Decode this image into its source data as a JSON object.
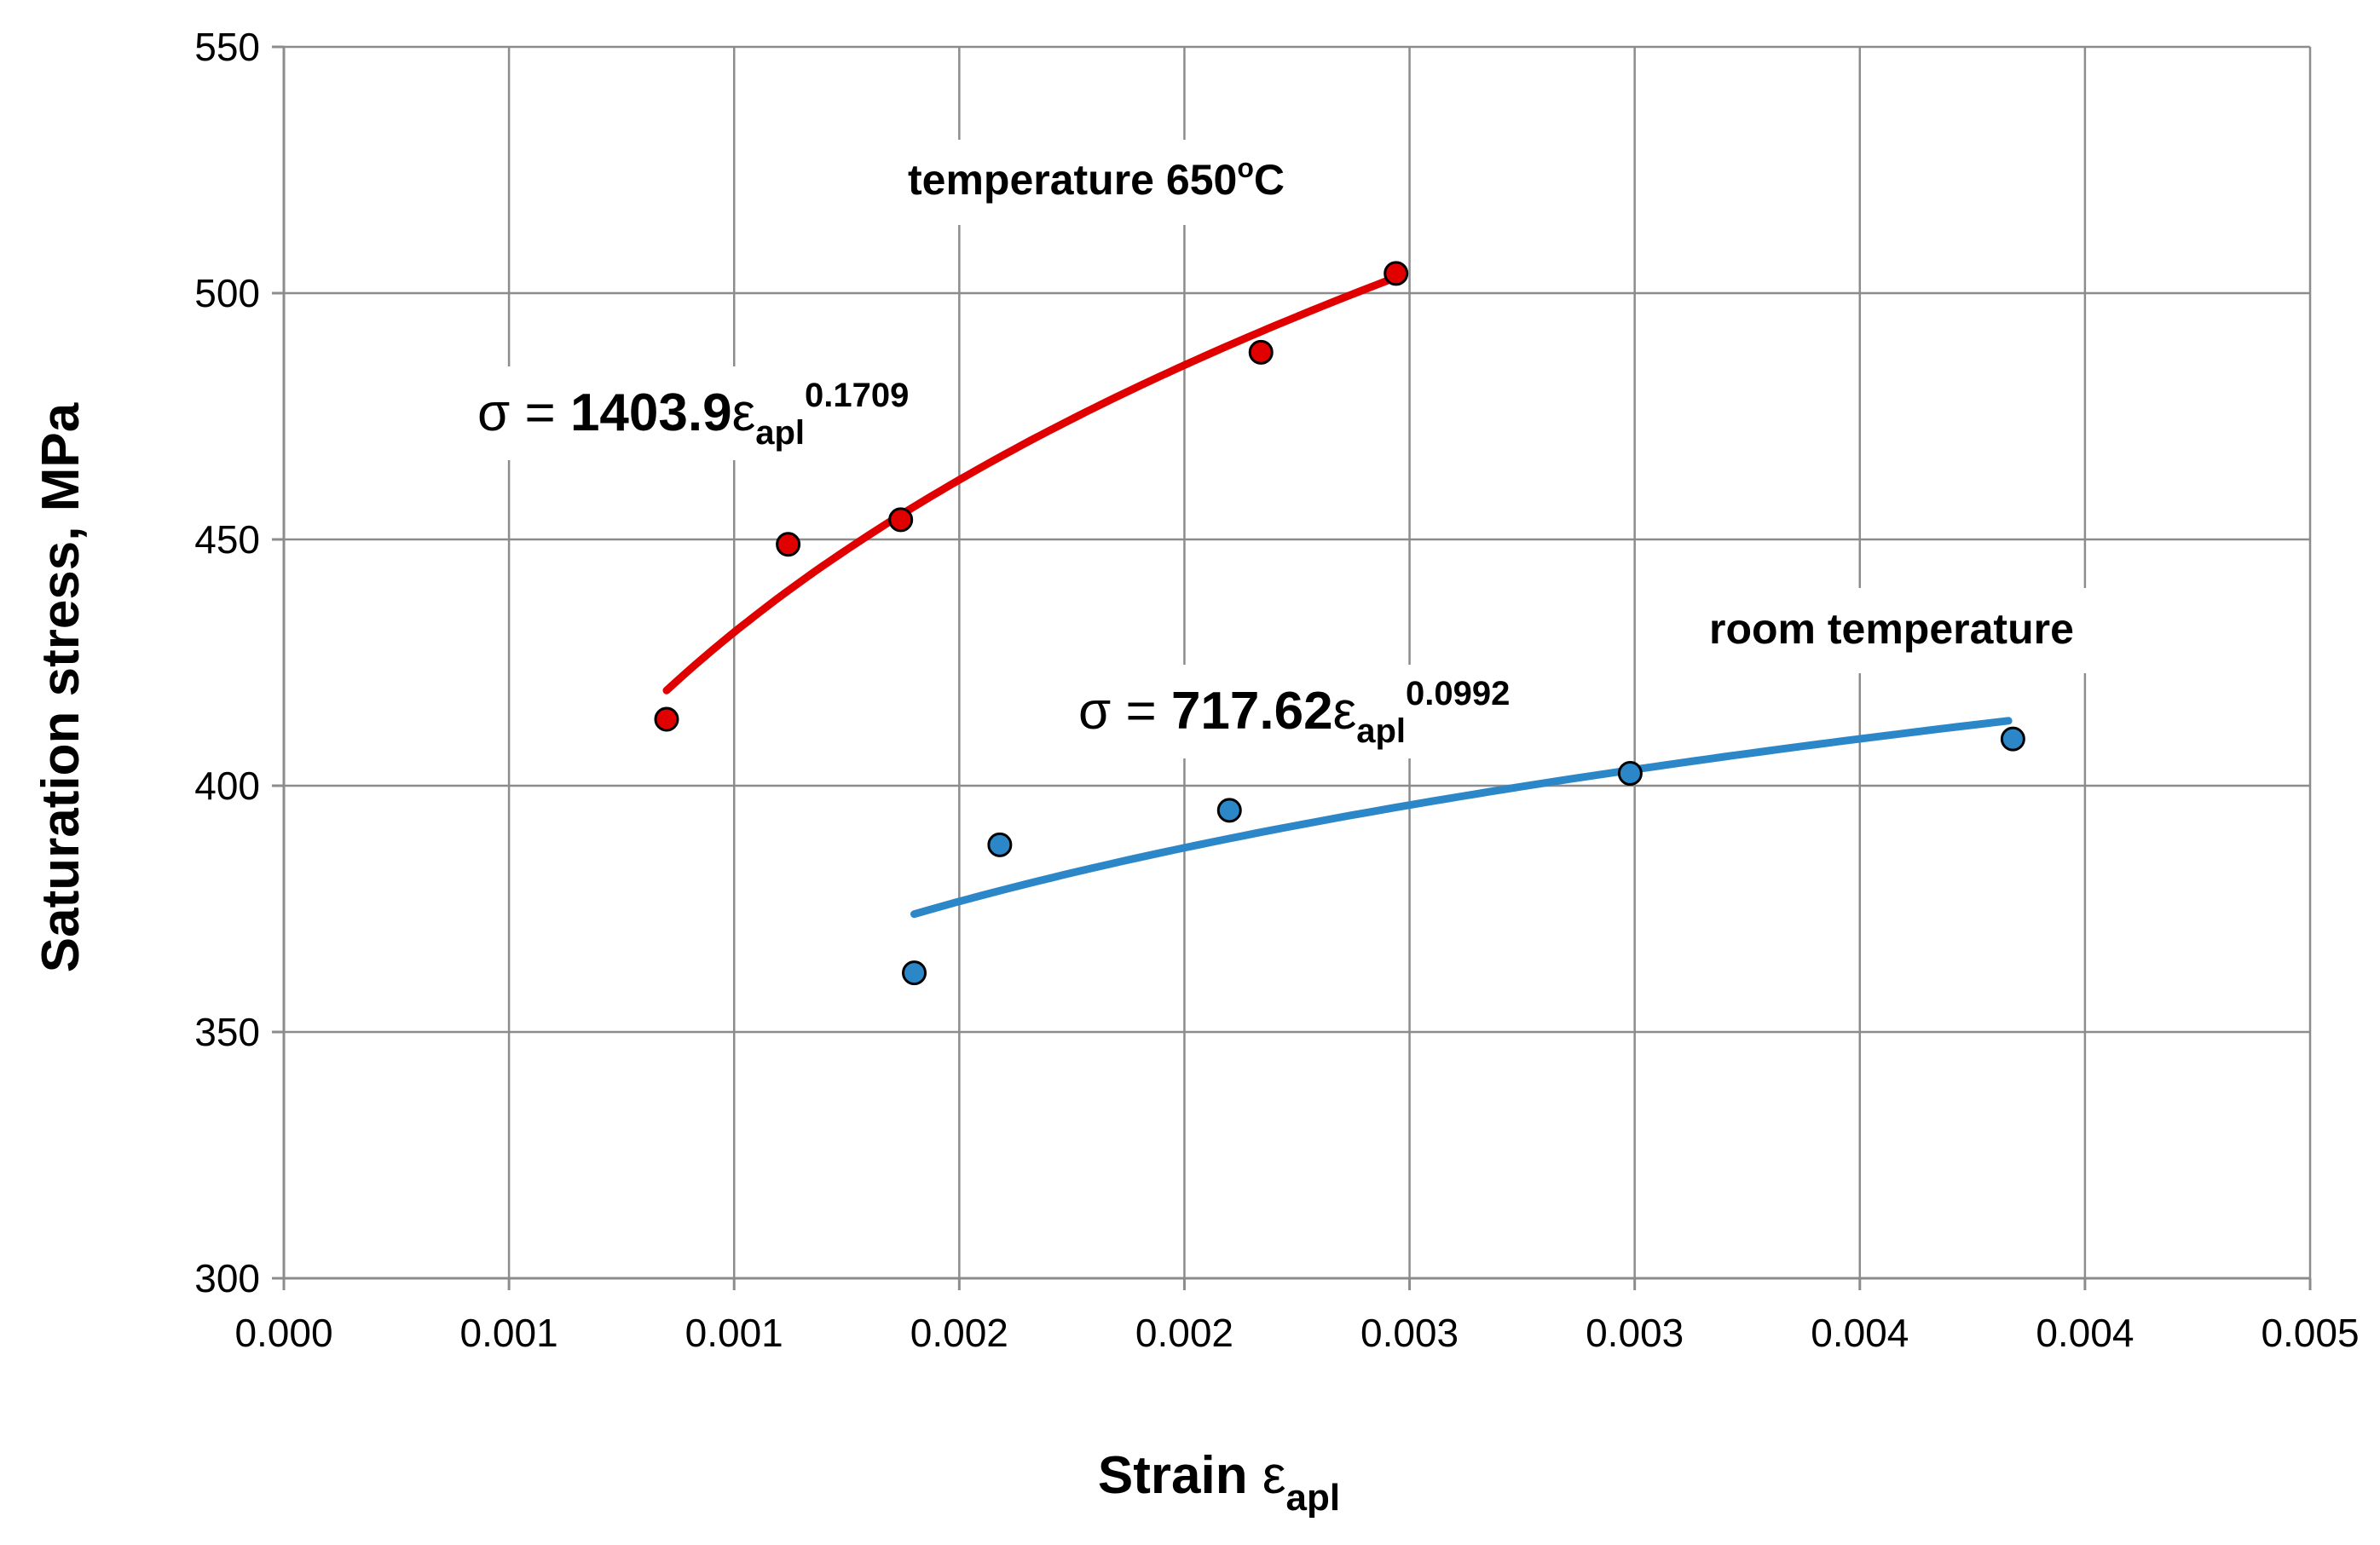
{
  "chart_data": {
    "type": "scatter",
    "title": "",
    "xlabel": {
      "main": "Strain ",
      "symbol": "ε",
      "subscript": "apl"
    },
    "ylabel": "Saturation stress, MPa",
    "xlim": [
      0.0,
      0.0045
    ],
    "ylim": [
      300,
      550
    ],
    "x_ticks": [
      0.0,
      0.0005,
      0.001,
      0.0015,
      0.002,
      0.0025,
      0.003,
      0.0035,
      0.004,
      0.0045
    ],
    "x_tick_labels": [
      "0.000",
      "0.001",
      "0.001",
      "0.002",
      "0.002",
      "0.003",
      "0.003",
      "0.004",
      "0.004",
      "0.005"
    ],
    "y_ticks": [
      300,
      350,
      400,
      450,
      500,
      550
    ],
    "y_tick_labels": [
      "300",
      "350",
      "400",
      "450",
      "500",
      "550"
    ],
    "grid": true,
    "series": [
      {
        "name": "temperature 650°C",
        "color": "#e00000",
        "marker_color": "#e00000",
        "points": [
          {
            "x": 0.00085,
            "y": 413.5
          },
          {
            "x": 0.00112,
            "y": 449
          },
          {
            "x": 0.00137,
            "y": 454
          },
          {
            "x": 0.00217,
            "y": 488
          },
          {
            "x": 0.00247,
            "y": 504
          }
        ],
        "fit": {
          "coef": 1403.9,
          "exponent": 0.1709,
          "x_range": [
            0.00085,
            0.00247
          ]
        },
        "equation": {
          "prefix": "σ = ",
          "coef_text": "1403.9",
          "symbol": "ε",
          "subscript": "apl",
          "exponent_text": "0.1709"
        },
        "label": {
          "main": "temperature 650",
          "sup": "o",
          "end": "C"
        }
      },
      {
        "name": "room temperature",
        "color": "#2b87c8",
        "marker_color": "#2b87c8",
        "points": [
          {
            "x": 0.0014,
            "y": 362
          },
          {
            "x": 0.00159,
            "y": 388
          },
          {
            "x": 0.0021,
            "y": 395
          },
          {
            "x": 0.00299,
            "y": 402.5
          },
          {
            "x": 0.00384,
            "y": 409.5
          }
        ],
        "fit": {
          "coef": 717.62,
          "exponent": 0.0992,
          "x_range": [
            0.0014,
            0.00383
          ]
        },
        "equation": {
          "prefix": "σ = ",
          "coef_text": "717.62",
          "symbol": "ε",
          "subscript": "apl",
          "exponent_text": "0.0992"
        },
        "label": {
          "main": "room temperature"
        }
      }
    ]
  }
}
